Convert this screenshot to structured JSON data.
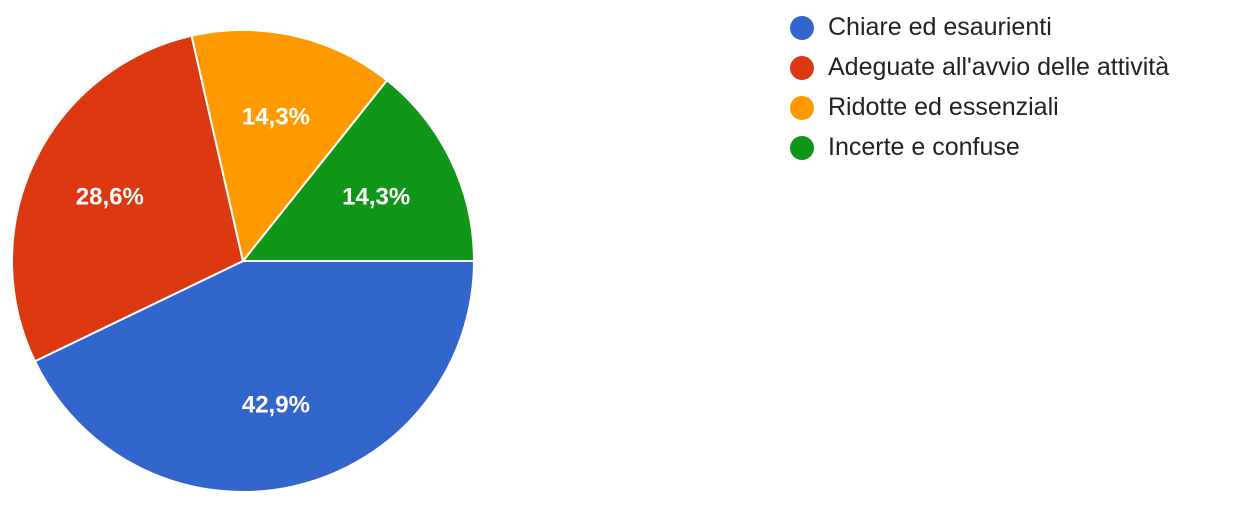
{
  "chart_data": {
    "type": "pie",
    "categories": [
      "Chiare ed esaurienti",
      "Adeguate all'avvio delle attività",
      "Ridotte ed essenziali",
      "Incerte e confuse"
    ],
    "values": [
      42.9,
      28.6,
      14.3,
      14.3
    ],
    "slices": [
      {
        "label": "Chiare ed esaurienti",
        "value": 42.9,
        "display": "42,9%",
        "color": "#3366cc"
      },
      {
        "label": "Adeguate all'avvio delle attività",
        "value": 28.6,
        "display": "28,6%",
        "color": "#dc3912"
      },
      {
        "label": "Ridotte ed essenziali",
        "value": 14.3,
        "display": "14,3%",
        "color": "#ff9900"
      },
      {
        "label": "Incerte e confuse",
        "value": 14.3,
        "display": "14,3%",
        "color": "#109618"
      }
    ],
    "legend_position": "right"
  }
}
